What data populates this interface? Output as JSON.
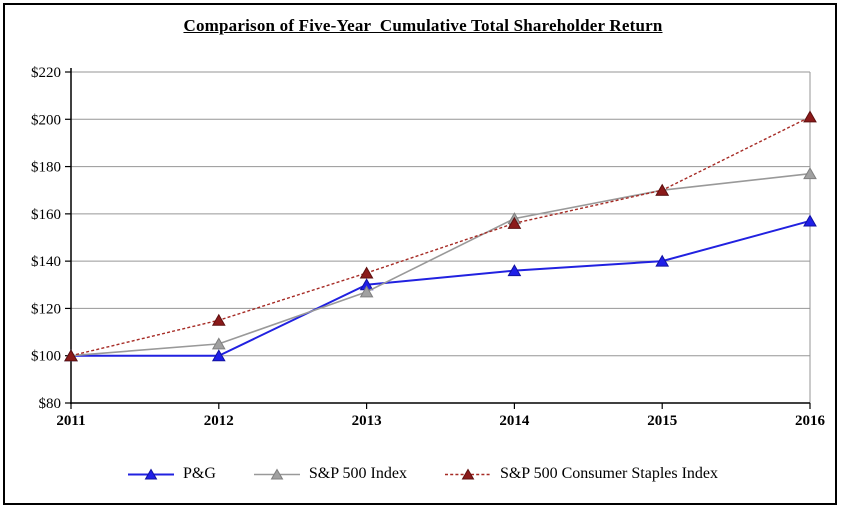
{
  "chart_data": {
    "type": "line",
    "title": "Comparison of Five-Year  Cumulative Total Shareholder Return",
    "x_labels": [
      "2011",
      "2012",
      "2013",
      "2014",
      "2015",
      "2016"
    ],
    "y_tick_labels": [
      "$80",
      "$100",
      "$120",
      "$140",
      "$160",
      "$180",
      "$200",
      "$220"
    ],
    "ylim": [
      80,
      220
    ],
    "y_tick_step": 20,
    "grid": true,
    "grid_color": "#969696",
    "axis_color": "#000000",
    "legend_position": "bottom",
    "series": [
      {
        "name": "P&G",
        "values": [
          100,
          100,
          130,
          136,
          140,
          157
        ],
        "color": "#2121e0",
        "marker_fill": "#1f1fe8",
        "marker_stroke": "#1212a0",
        "dash": "none",
        "width": 2
      },
      {
        "name": "S&P 500 Index",
        "values": [
          100,
          105,
          127,
          158,
          170,
          177
        ],
        "color": "#999999",
        "marker_fill": "#a0a0a0",
        "marker_stroke": "#7f7f7f",
        "dash": "none",
        "width": 1.6
      },
      {
        "name": "S&P 500 Consumer Staples Index",
        "values": [
          100,
          115,
          135,
          156,
          170,
          201
        ],
        "color": "#a62b25",
        "marker_fill": "#8b1a1a",
        "marker_stroke": "#5e1010",
        "dash": "3,2.2",
        "width": 1.4
      }
    ]
  }
}
